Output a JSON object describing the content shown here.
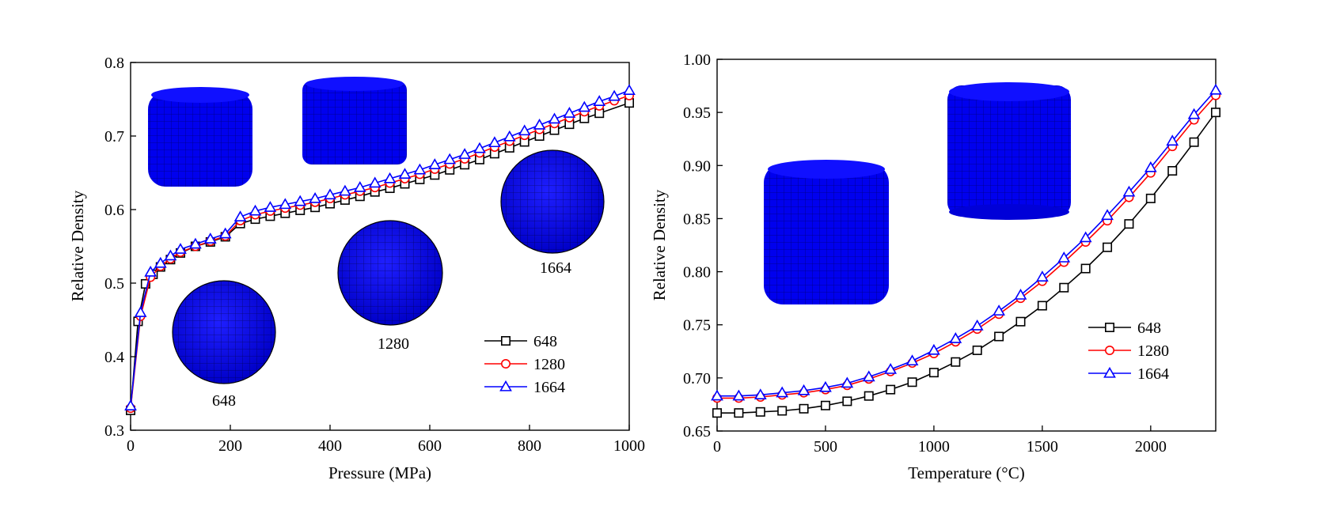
{
  "chart_data": [
    {
      "type": "line",
      "xlabel": "Pressure (MPa)",
      "ylabel": "Relative Density",
      "xlim": [
        0,
        1000
      ],
      "ylim": [
        0.3,
        0.8
      ],
      "xticks": [
        "0",
        "200",
        "400",
        "600",
        "800",
        "1000"
      ],
      "yticks": [
        "0.3",
        "0.4",
        "0.5",
        "0.6",
        "0.7",
        "0.8"
      ],
      "grid": false,
      "legend": "bottom-right",
      "inset_labels": [
        "648",
        "1280",
        "1664"
      ],
      "series": [
        {
          "name": "648",
          "color": "#000000",
          "marker": "square",
          "x": [
            0,
            15,
            30,
            45,
            60,
            80,
            100,
            130,
            160,
            190,
            220,
            250,
            280,
            310,
            340,
            370,
            400,
            430,
            460,
            490,
            520,
            550,
            580,
            610,
            640,
            670,
            700,
            730,
            760,
            790,
            820,
            850,
            880,
            910,
            940,
            1000
          ],
          "y": [
            0.327,
            0.448,
            0.499,
            0.512,
            0.522,
            0.532,
            0.541,
            0.55,
            0.556,
            0.563,
            0.581,
            0.587,
            0.591,
            0.595,
            0.599,
            0.603,
            0.608,
            0.613,
            0.618,
            0.624,
            0.629,
            0.635,
            0.641,
            0.647,
            0.654,
            0.661,
            0.668,
            0.676,
            0.684,
            0.692,
            0.7,
            0.708,
            0.716,
            0.724,
            0.731,
            0.745
          ]
        },
        {
          "name": "1280",
          "color": "#ff0000",
          "marker": "circle",
          "x": [
            0,
            20,
            40,
            60,
            80,
            100,
            130,
            160,
            190,
            220,
            250,
            280,
            310,
            340,
            370,
            400,
            430,
            460,
            490,
            520,
            550,
            580,
            610,
            640,
            670,
            700,
            730,
            760,
            790,
            820,
            850,
            880,
            910,
            940,
            970,
            1000
          ],
          "y": [
            0.33,
            0.455,
            0.508,
            0.523,
            0.533,
            0.542,
            0.55,
            0.557,
            0.564,
            0.585,
            0.593,
            0.598,
            0.602,
            0.606,
            0.61,
            0.615,
            0.62,
            0.625,
            0.63,
            0.636,
            0.642,
            0.648,
            0.655,
            0.662,
            0.669,
            0.677,
            0.685,
            0.693,
            0.701,
            0.709,
            0.717,
            0.725,
            0.733,
            0.741,
            0.748,
            0.755
          ]
        },
        {
          "name": "1664",
          "color": "#0000ff",
          "marker": "triangle",
          "x": [
            0,
            20,
            40,
            60,
            80,
            100,
            130,
            160,
            190,
            220,
            250,
            280,
            310,
            340,
            370,
            400,
            430,
            460,
            490,
            520,
            550,
            580,
            610,
            640,
            670,
            700,
            730,
            760,
            790,
            820,
            850,
            880,
            910,
            940,
            970,
            1000
          ],
          "y": [
            0.333,
            0.46,
            0.515,
            0.527,
            0.537,
            0.546,
            0.553,
            0.56,
            0.567,
            0.59,
            0.598,
            0.603,
            0.607,
            0.611,
            0.615,
            0.62,
            0.625,
            0.63,
            0.636,
            0.642,
            0.648,
            0.654,
            0.661,
            0.668,
            0.675,
            0.683,
            0.691,
            0.699,
            0.707,
            0.715,
            0.723,
            0.731,
            0.739,
            0.747,
            0.754,
            0.762
          ]
        }
      ]
    },
    {
      "type": "line",
      "xlabel": "Temperature (°C)",
      "ylabel": "Relative Density",
      "xlim": [
        0,
        2300
      ],
      "ylim": [
        0.65,
        1.0
      ],
      "xticks": [
        "0",
        "500",
        "1000",
        "1500",
        "2000"
      ],
      "yticks": [
        "0.65",
        "0.70",
        "0.75",
        "0.80",
        "0.85",
        "0.90",
        "0.95",
        "1.00"
      ],
      "grid": false,
      "legend": "bottom-right",
      "series": [
        {
          "name": "648",
          "color": "#000000",
          "marker": "square",
          "x": [
            0,
            100,
            200,
            300,
            400,
            500,
            600,
            700,
            800,
            900,
            1000,
            1100,
            1200,
            1300,
            1400,
            1500,
            1600,
            1700,
            1800,
            1900,
            2000,
            2100,
            2200,
            2300
          ],
          "y": [
            0.667,
            0.667,
            0.668,
            0.669,
            0.671,
            0.674,
            0.678,
            0.683,
            0.689,
            0.696,
            0.705,
            0.715,
            0.726,
            0.739,
            0.753,
            0.768,
            0.785,
            0.803,
            0.823,
            0.845,
            0.869,
            0.895,
            0.922,
            0.95
          ]
        },
        {
          "name": "1280",
          "color": "#ff0000",
          "marker": "circle",
          "x": [
            0,
            100,
            200,
            300,
            400,
            500,
            600,
            700,
            800,
            900,
            1000,
            1100,
            1200,
            1300,
            1400,
            1500,
            1600,
            1700,
            1800,
            1900,
            2000,
            2100,
            2200,
            2300
          ],
          "y": [
            0.681,
            0.681,
            0.682,
            0.684,
            0.686,
            0.689,
            0.693,
            0.699,
            0.706,
            0.714,
            0.723,
            0.734,
            0.746,
            0.76,
            0.775,
            0.791,
            0.809,
            0.828,
            0.848,
            0.87,
            0.893,
            0.918,
            0.943,
            0.966
          ]
        },
        {
          "name": "1664",
          "color": "#0000ff",
          "marker": "triangle",
          "x": [
            0,
            100,
            200,
            300,
            400,
            500,
            600,
            700,
            800,
            900,
            1000,
            1100,
            1200,
            1300,
            1400,
            1500,
            1600,
            1700,
            1800,
            1900,
            2000,
            2100,
            2200,
            2300
          ],
          "y": [
            0.683,
            0.683,
            0.684,
            0.686,
            0.688,
            0.691,
            0.695,
            0.701,
            0.708,
            0.716,
            0.726,
            0.737,
            0.749,
            0.763,
            0.778,
            0.795,
            0.813,
            0.832,
            0.853,
            0.875,
            0.898,
            0.923,
            0.948,
            0.971
          ]
        }
      ]
    }
  ]
}
